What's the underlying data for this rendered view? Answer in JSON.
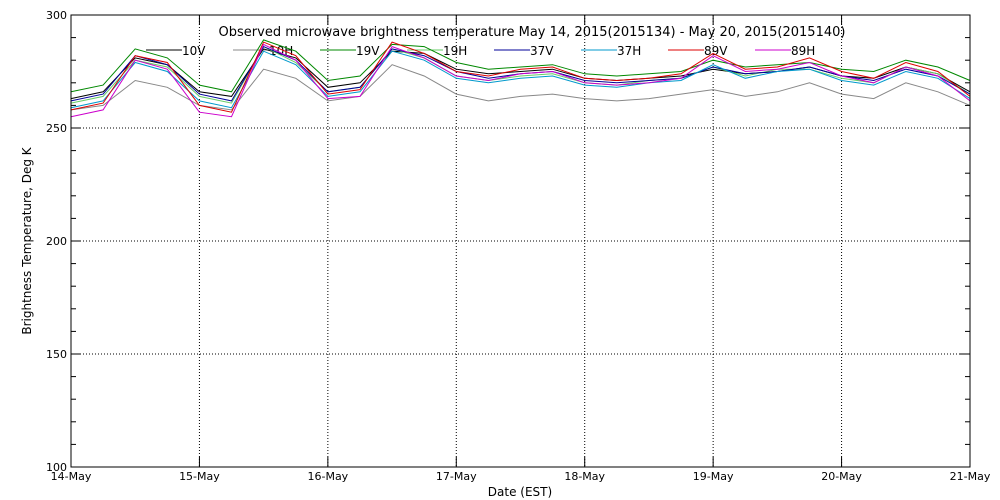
{
  "chart_data": {
    "type": "line",
    "title": "Observed microwave brightness temperature May 14, 2015(2015134) - May 20, 2015(2015140)",
    "xlabel": "Date (EST)",
    "ylabel": "Brightness Temperature, Deg K",
    "ylim": [
      100,
      300
    ],
    "xlim": [
      "2015-05-14",
      "2015-05-21"
    ],
    "x_ticks": [
      "14-May",
      "15-May",
      "16-May",
      "17-May",
      "18-May",
      "19-May",
      "20-May",
      "21-May"
    ],
    "y_ticks": [
      100,
      150,
      200,
      250,
      300
    ],
    "grid": "dotted at major ticks",
    "legend_position": "top",
    "x": [
      "2015-05-14T00:00",
      "2015-05-14T06:00",
      "2015-05-14T12:00",
      "2015-05-14T18:00",
      "2015-05-15T00:00",
      "2015-05-15T06:00",
      "2015-05-15T12:00",
      "2015-05-15T18:00",
      "2015-05-16T00:00",
      "2015-05-16T06:00",
      "2015-05-16T12:00",
      "2015-05-16T18:00",
      "2015-05-17T00:00",
      "2015-05-17T06:00",
      "2015-05-17T12:00",
      "2015-05-17T18:00",
      "2015-05-18T00:00",
      "2015-05-18T06:00",
      "2015-05-18T12:00",
      "2015-05-18T18:00",
      "2015-05-19T00:00",
      "2015-05-19T06:00",
      "2015-05-19T12:00",
      "2015-05-19T18:00",
      "2015-05-20T00:00",
      "2015-05-20T06:00",
      "2015-05-20T12:00",
      "2015-05-20T18:00",
      "2015-05-21T00:00"
    ],
    "series": [
      {
        "name": "10V",
        "color": "#000000",
        "values": [
          263,
          266,
          281,
          278,
          266,
          264,
          285,
          281,
          268,
          270,
          284,
          283,
          276,
          274,
          275,
          276,
          272,
          271,
          272,
          273,
          276,
          274,
          275,
          277,
          273,
          272,
          277,
          274,
          266
        ]
      },
      {
        "name": "10H",
        "color": "#888888",
        "values": [
          258,
          260,
          271,
          268,
          260,
          258,
          276,
          272,
          262,
          264,
          278,
          273,
          265,
          262,
          264,
          265,
          263,
          262,
          263,
          265,
          267,
          264,
          266,
          270,
          265,
          263,
          270,
          266,
          260
        ]
      },
      {
        "name": "19V",
        "color": "#008800",
        "values": [
          266,
          269,
          285,
          281,
          269,
          266,
          289,
          284,
          271,
          273,
          287,
          286,
          279,
          276,
          277,
          278,
          274,
          273,
          274,
          275,
          280,
          277,
          278,
          279,
          276,
          275,
          280,
          277,
          271
        ]
      },
      {
        "name": "19H",
        "color": "#66cc66",
        "values": [
          261,
          264,
          280,
          277,
          264,
          261,
          286,
          279,
          266,
          268,
          285,
          281,
          273,
          271,
          273,
          274,
          270,
          269,
          271,
          272,
          277,
          273,
          276,
          276,
          272,
          270,
          277,
          274,
          265
        ]
      },
      {
        "name": "37V",
        "color": "#000099",
        "values": [
          262,
          265,
          282,
          278,
          265,
          262,
          286,
          280,
          266,
          268,
          285,
          282,
          275,
          272,
          274,
          275,
          271,
          270,
          271,
          272,
          277,
          274,
          275,
          277,
          273,
          271,
          276,
          273,
          265
        ]
      },
      {
        "name": "37H",
        "color": "#0099cc",
        "values": [
          259,
          262,
          279,
          275,
          262,
          259,
          284,
          278,
          264,
          266,
          284,
          280,
          272,
          270,
          272,
          273,
          269,
          268,
          270,
          271,
          278,
          272,
          275,
          276,
          271,
          269,
          275,
          272,
          263
        ]
      },
      {
        "name": "89V",
        "color": "#dd0000",
        "values": [
          258,
          261,
          282,
          279,
          260,
          257,
          288,
          282,
          265,
          267,
          288,
          283,
          275,
          273,
          276,
          277,
          272,
          271,
          272,
          274,
          283,
          276,
          277,
          281,
          275,
          272,
          279,
          275,
          264
        ]
      },
      {
        "name": "89H",
        "color": "#cc00cc",
        "values": [
          255,
          258,
          280,
          276,
          257,
          255,
          287,
          280,
          263,
          264,
          286,
          281,
          273,
          271,
          274,
          275,
          270,
          269,
          270,
          272,
          282,
          275,
          276,
          279,
          273,
          270,
          277,
          273,
          262
        ]
      }
    ]
  }
}
